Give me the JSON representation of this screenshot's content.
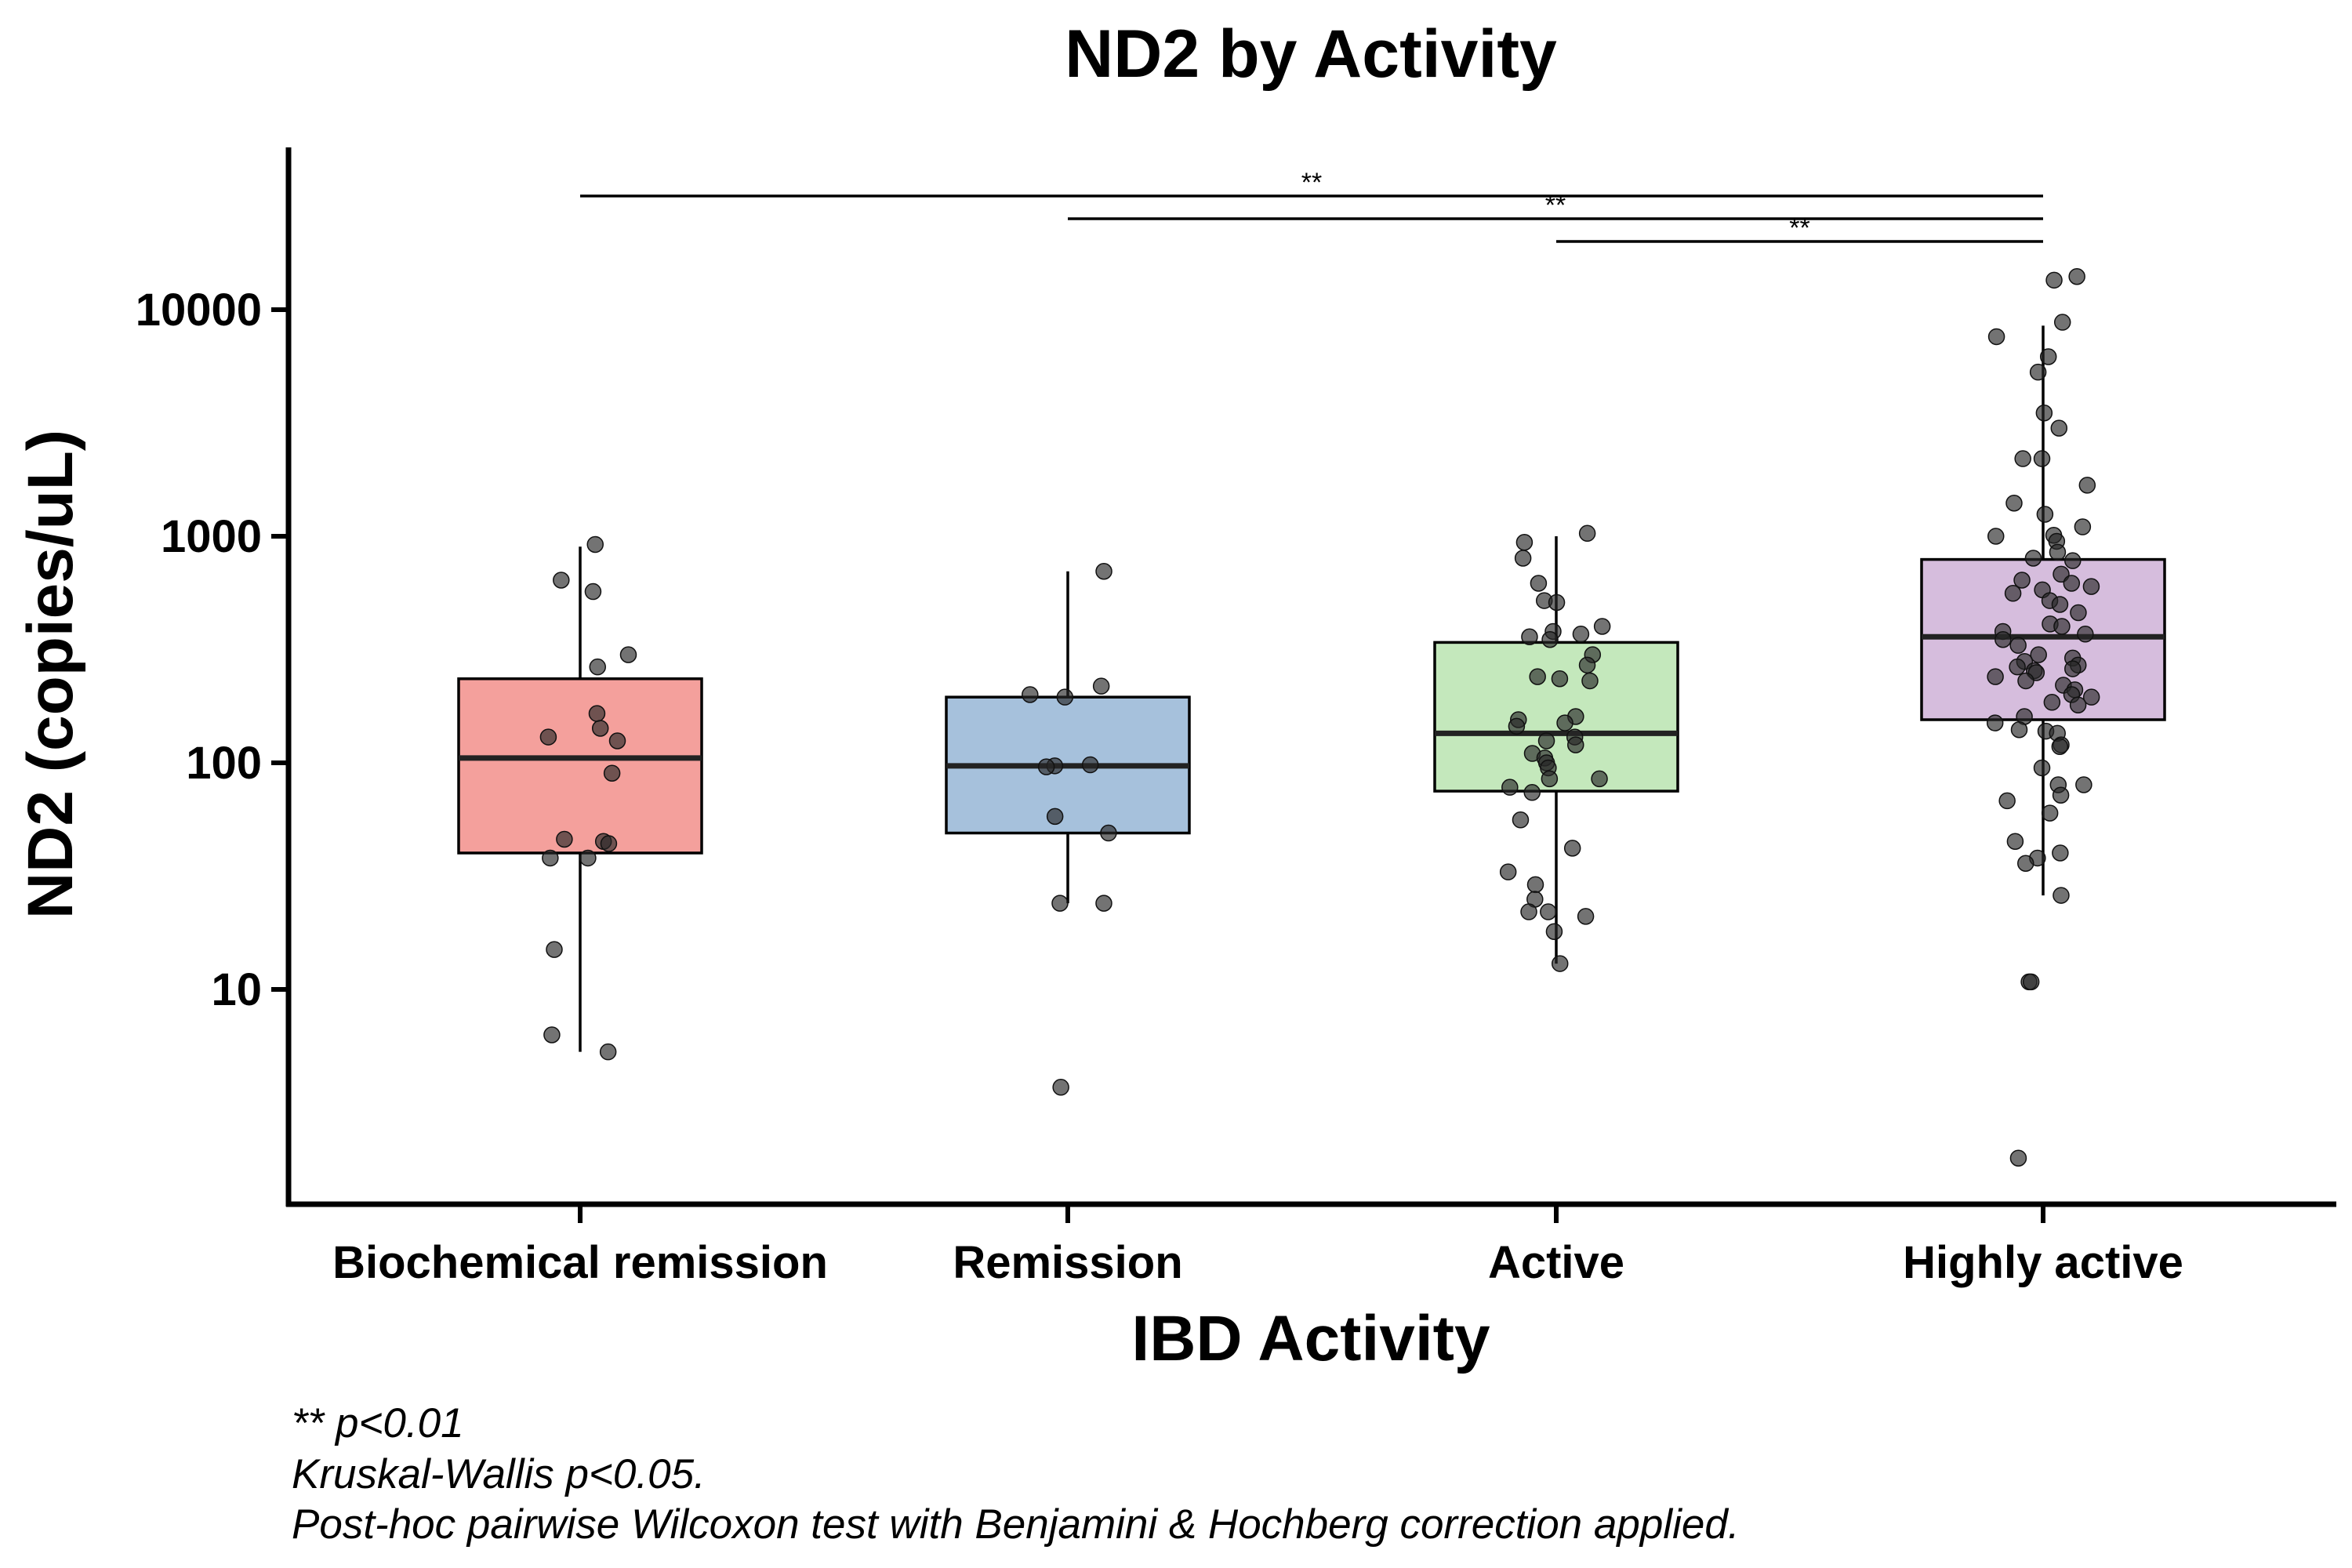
{
  "chart_data": {
    "type": "box",
    "title": "ND2 by Activity",
    "xlabel": "IBD Activity",
    "ylabel": "ND2 (copies/uL)",
    "y_scale": "log10",
    "ylim": [
      1.3,
      50000
    ],
    "y_ticks": [
      10,
      100,
      1000,
      10000
    ],
    "y_tick_labels": [
      "10",
      "100",
      "1000",
      "10000"
    ],
    "categories": [
      "Biochemical remission",
      "Remission",
      "Active",
      "Highly active"
    ],
    "colors": [
      "#f4a09c",
      "#a6c1dc",
      "#c4e8bc",
      "#d6bddd"
    ],
    "boxes": [
      {
        "category": "Biochemical remission",
        "q1": 40,
        "median": 105,
        "q3": 235,
        "whisker_low": 5.3,
        "whisker_high": 900
      },
      {
        "category": "Remission",
        "q1": 49,
        "median": 97,
        "q3": 195,
        "whisker_low": 24,
        "whisker_high": 700
      },
      {
        "category": "Active",
        "q1": 75,
        "median": 135,
        "q3": 340,
        "whisker_low": 13,
        "whisker_high": 1000
      },
      {
        "category": "Highly active",
        "q1": 155,
        "median": 360,
        "q3": 790,
        "whisker_low": 26,
        "whisker_high": 8500
      }
    ],
    "points": [
      [
        920,
        640,
        570,
        300,
        265,
        165,
        130,
        125,
        142,
        90,
        45,
        46,
        44,
        38,
        38,
        15,
        6.3,
        5.3
      ],
      [
        700,
        218,
        200,
        195,
        98,
        97,
        96,
        58,
        49,
        24,
        24,
        3.7
      ],
      [
        1030,
        940,
        800,
        620,
        520,
        510,
        400,
        380,
        370,
        360,
        350,
        300,
        270,
        240,
        235,
        230,
        160,
        155,
        150,
        145,
        130,
        125,
        120,
        110,
        105,
        100,
        95,
        85,
        85,
        78,
        74,
        56,
        42,
        33,
        29,
        25,
        22,
        22,
        21,
        18,
        13
      ],
      [
        14000,
        13500,
        8800,
        7600,
        6200,
        5300,
        3500,
        3000,
        2200,
        2200,
        1680,
        1400,
        1250,
        1100,
        1010,
        1000,
        950,
        850,
        800,
        780,
        680,
        640,
        620,
        600,
        580,
        560,
        520,
        500,
        460,
        410,
        400,
        380,
        370,
        350,
        330,
        300,
        290,
        280,
        270,
        265,
        260,
        255,
        250,
        240,
        230,
        220,
        210,
        200,
        195,
        185,
        180,
        160,
        150,
        140,
        138,
        135,
        120,
        118,
        95,
        80,
        80,
        72,
        68,
        60,
        45,
        40,
        38,
        36,
        26,
        10.8,
        10.8,
        1.8
      ]
    ],
    "significance": [
      {
        "from": "Biochemical remission",
        "to": "Highly active",
        "label": "**"
      },
      {
        "from": "Remission",
        "to": "Highly active",
        "label": "**"
      },
      {
        "from": "Active",
        "to": "Highly active",
        "label": "**"
      }
    ],
    "notes": [
      "** p<0.01",
      "Kruskal-Wallis p<0.05.",
      "Post-hoc pairwise Wilcoxon test with Benjamini & Hochberg correction applied."
    ]
  }
}
